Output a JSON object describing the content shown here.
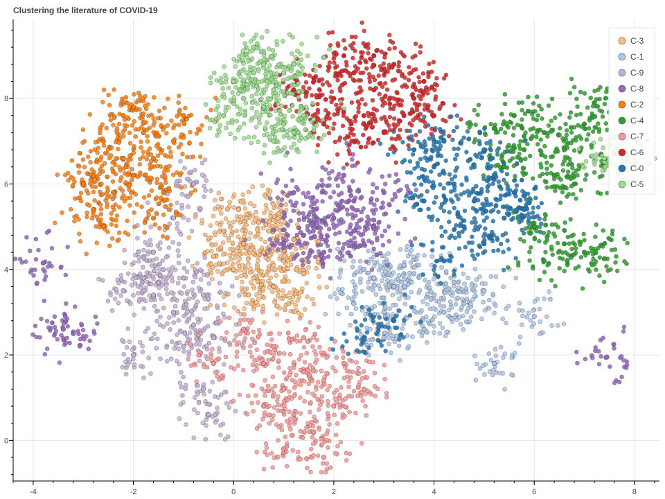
{
  "chart_data": {
    "type": "scatter",
    "title": "Clustering the literature of COVID-19",
    "xlabel": "",
    "ylabel": "",
    "xlim": [
      -4.4,
      8.5
    ],
    "ylim": [
      -0.95,
      9.85
    ],
    "x_ticks": [
      -4,
      -2,
      0,
      2,
      4,
      6,
      8
    ],
    "y_ticks": [
      0,
      2,
      4,
      6,
      8
    ],
    "grid": true,
    "legend_position": "top-right",
    "series": [
      {
        "name": "C-3",
        "color": "#ffbb78",
        "points": [
          [
            0.2,
            4.6
          ],
          [
            0.6,
            4.4
          ],
          [
            1.0,
            4.2
          ],
          [
            0.4,
            3.8
          ],
          [
            0.8,
            3.6
          ],
          [
            -0.2,
            4.9
          ],
          [
            1.2,
            4.7
          ],
          [
            0.5,
            5.1
          ],
          [
            0.0,
            4.0
          ],
          [
            1.4,
            3.9
          ],
          [
            0.3,
            3.4
          ],
          [
            0.9,
            5.3
          ],
          [
            -0.4,
            4.3
          ],
          [
            1.1,
            3.2
          ],
          [
            0.7,
            4.9
          ],
          [
            0.1,
            5.4
          ]
        ]
      },
      {
        "name": "C-1",
        "color": "#aec7e8",
        "points": [
          [
            2.8,
            3.8
          ],
          [
            3.2,
            3.6
          ],
          [
            3.6,
            3.9
          ],
          [
            4.0,
            3.4
          ],
          [
            2.4,
            3.2
          ],
          [
            3.0,
            3.0
          ],
          [
            4.4,
            3.7
          ],
          [
            3.4,
            4.1
          ],
          [
            2.6,
            4.0
          ],
          [
            4.2,
            3.0
          ],
          [
            5.0,
            3.5
          ],
          [
            3.8,
            2.6
          ],
          [
            4.6,
            3.2
          ],
          [
            6.0,
            2.9
          ],
          [
            5.2,
            1.8
          ],
          [
            3.0,
            2.4
          ]
        ]
      },
      {
        "name": "C-9",
        "color": "#c5b0d5",
        "points": [
          [
            -1.6,
            3.4
          ],
          [
            -1.2,
            3.0
          ],
          [
            -0.8,
            2.7
          ],
          [
            -1.4,
            4.0
          ],
          [
            -1.8,
            3.8
          ],
          [
            -0.6,
            3.4
          ],
          [
            -1.0,
            3.8
          ],
          [
            -2.2,
            3.5
          ],
          [
            -0.4,
            2.4
          ],
          [
            -1.0,
            2.2
          ],
          [
            -0.6,
            1.2
          ],
          [
            -0.5,
            0.6
          ],
          [
            -2.0,
            2.0
          ],
          [
            -1.6,
            4.4
          ],
          [
            -1.2,
            5.2
          ],
          [
            -0.8,
            6.0
          ]
        ]
      },
      {
        "name": "C-8",
        "color": "#9467bd",
        "points": [
          [
            1.6,
            5.4
          ],
          [
            2.0,
            5.2
          ],
          [
            2.4,
            5.6
          ],
          [
            1.4,
            4.8
          ],
          [
            2.2,
            6.2
          ],
          [
            2.8,
            5.0
          ],
          [
            1.8,
            4.4
          ],
          [
            2.6,
            4.6
          ],
          [
            3.0,
            5.8
          ],
          [
            1.2,
            5.8
          ],
          [
            -3.2,
            2.5
          ],
          [
            -3.4,
            2.6
          ],
          [
            -3.8,
            4.15
          ],
          [
            7.45,
            1.95
          ],
          [
            1.0,
            4.6
          ],
          [
            2.4,
            4.9
          ]
        ]
      },
      {
        "name": "C-2",
        "color": "#ff7f0e",
        "points": [
          [
            -2.6,
            7.0
          ],
          [
            -2.2,
            6.6
          ],
          [
            -1.8,
            7.2
          ],
          [
            -2.8,
            6.2
          ],
          [
            -2.4,
            5.8
          ],
          [
            -2.0,
            6.2
          ],
          [
            -1.6,
            6.6
          ],
          [
            -2.2,
            7.6
          ],
          [
            -2.8,
            5.4
          ],
          [
            -1.4,
            5.8
          ],
          [
            -1.2,
            7.0
          ],
          [
            -3.0,
            6.0
          ],
          [
            -1.0,
            7.6
          ],
          [
            -2.6,
            5.0
          ],
          [
            -1.6,
            5.2
          ],
          [
            -2.0,
            7.8
          ]
        ]
      },
      {
        "name": "C-4",
        "color": "#2ca02c",
        "points": [
          [
            5.8,
            6.8
          ],
          [
            6.2,
            7.2
          ],
          [
            6.6,
            6.8
          ],
          [
            7.0,
            7.4
          ],
          [
            5.6,
            7.6
          ],
          [
            6.4,
            6.2
          ],
          [
            7.2,
            7.9
          ],
          [
            6.8,
            6.0
          ],
          [
            5.4,
            6.4
          ],
          [
            7.4,
            4.25
          ],
          [
            7.0,
            4.4
          ],
          [
            6.6,
            4.6
          ],
          [
            6.2,
            4.2
          ],
          [
            6.0,
            5.0
          ],
          [
            7.6,
            6.7
          ],
          [
            5.2,
            7.3
          ]
        ]
      },
      {
        "name": "C-7",
        "color": "#ff9896",
        "points": [
          [
            1.4,
            1.6
          ],
          [
            1.0,
            1.2
          ],
          [
            1.8,
            1.4
          ],
          [
            1.2,
            0.6
          ],
          [
            1.6,
            0.2
          ],
          [
            0.6,
            1.8
          ],
          [
            2.2,
            1.8
          ],
          [
            1.4,
            2.4
          ],
          [
            0.8,
            2.2
          ],
          [
            2.6,
            1.2
          ],
          [
            0.2,
            2.6
          ],
          [
            1.0,
            -0.2
          ],
          [
            1.8,
            -0.4
          ],
          [
            -0.4,
            1.8
          ],
          [
            2.0,
            0.8
          ],
          [
            0.6,
            0.8
          ]
        ]
      },
      {
        "name": "C-6",
        "color": "#d62728",
        "points": [
          [
            2.4,
            8.6
          ],
          [
            2.8,
            8.2
          ],
          [
            3.2,
            8.8
          ],
          [
            2.0,
            8.0
          ],
          [
            3.6,
            8.0
          ],
          [
            2.6,
            7.6
          ],
          [
            3.0,
            7.2
          ],
          [
            1.6,
            8.4
          ],
          [
            3.4,
            7.6
          ],
          [
            2.2,
            9.0
          ],
          [
            1.2,
            8.2
          ],
          [
            4.0,
            7.6
          ],
          [
            2.8,
            9.0
          ],
          [
            1.8,
            7.4
          ],
          [
            3.8,
            8.4
          ],
          [
            2.4,
            7.0
          ]
        ]
      },
      {
        "name": "C-0",
        "color": "#1f77b4",
        "points": [
          [
            4.4,
            6.0
          ],
          [
            4.8,
            5.6
          ],
          [
            5.2,
            6.2
          ],
          [
            4.0,
            6.4
          ],
          [
            5.6,
            5.8
          ],
          [
            4.6,
            5.0
          ],
          [
            5.0,
            4.6
          ],
          [
            3.8,
            5.6
          ],
          [
            5.4,
            5.2
          ],
          [
            4.2,
            7.0
          ],
          [
            3.6,
            6.8
          ],
          [
            5.0,
            6.8
          ],
          [
            3.2,
            2.8
          ],
          [
            2.6,
            2.4
          ],
          [
            4.2,
            4.2
          ],
          [
            5.8,
            5.4
          ]
        ]
      },
      {
        "name": "C-5",
        "color": "#98df8a",
        "points": [
          [
            0.4,
            8.6
          ],
          [
            0.8,
            8.2
          ],
          [
            0.6,
            7.8
          ],
          [
            1.0,
            7.4
          ],
          [
            0.2,
            8.0
          ],
          [
            1.2,
            8.8
          ],
          [
            0.4,
            9.2
          ],
          [
            0.8,
            7.0
          ],
          [
            -0.2,
            7.6
          ],
          [
            1.4,
            7.6
          ],
          [
            0.0,
            8.4
          ],
          [
            0.6,
            8.8
          ],
          [
            1.0,
            8.6
          ],
          [
            7.8,
            6.7
          ],
          [
            7.4,
            6.6
          ],
          [
            1.2,
            7.2
          ]
        ]
      }
    ]
  }
}
